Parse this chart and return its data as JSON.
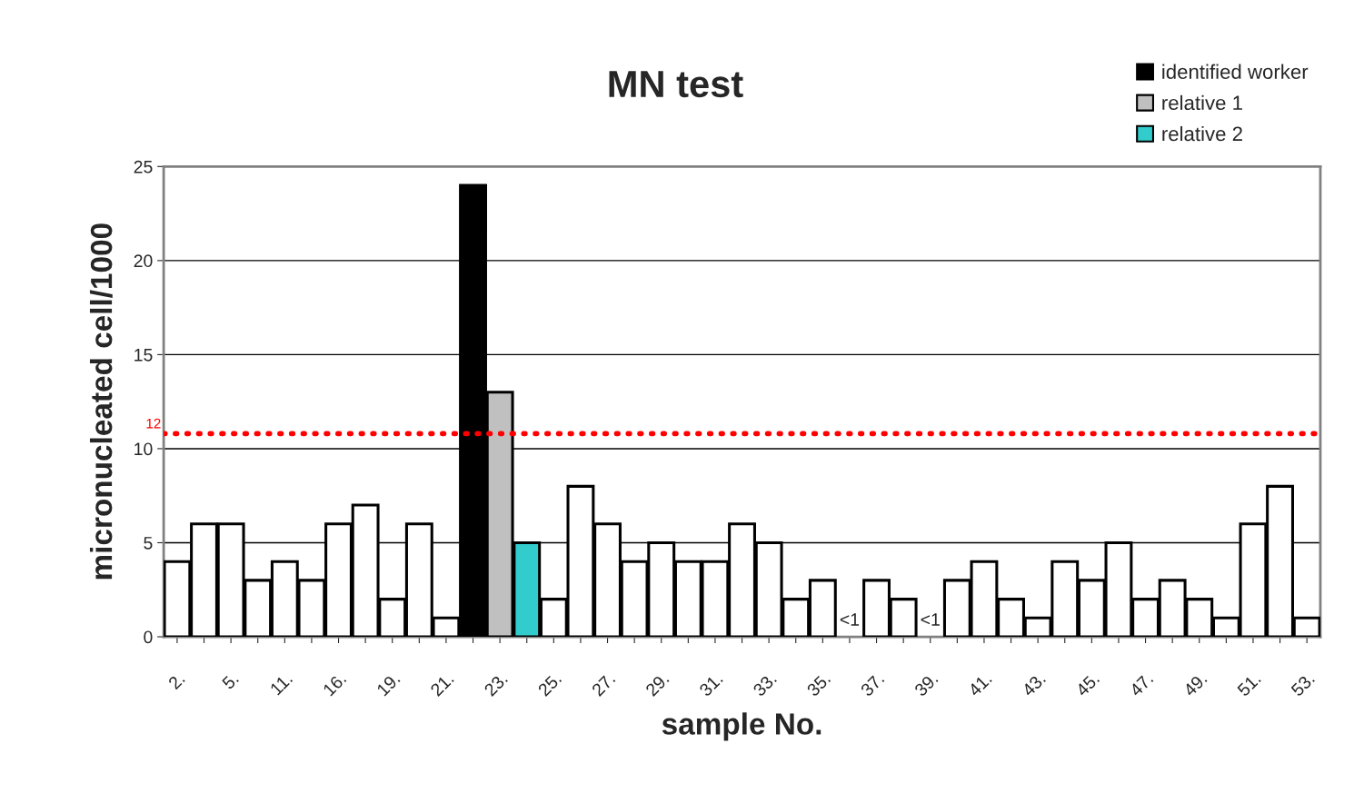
{
  "chart_data": {
    "type": "bar",
    "title": "MN test",
    "xlabel": "sample No.",
    "ylabel": "micronucleated cell/1000",
    "categories": [
      "2.",
      null,
      "5.",
      null,
      "11.",
      null,
      "16.",
      null,
      "19.",
      null,
      "21.",
      null,
      "23.",
      null,
      "25.",
      null,
      "27.",
      null,
      "29.",
      null,
      "31.",
      null,
      "33.",
      null,
      "35.",
      null,
      "37.",
      null,
      "39.",
      null,
      "41.",
      null,
      "43.",
      null,
      "45.",
      null,
      "47.",
      null,
      "49.",
      null,
      "51.",
      null,
      "53."
    ],
    "series": [
      {
        "color": "#ffffff",
        "values": [
          4,
          6,
          6,
          3,
          4,
          3,
          6,
          7,
          2,
          6,
          1,
          null,
          null,
          null,
          2,
          8,
          6,
          4,
          5,
          4,
          4,
          6,
          5,
          2,
          3,
          null,
          3,
          2,
          null,
          3,
          4,
          2,
          1,
          4,
          3,
          5,
          2,
          3,
          2,
          1,
          6,
          8,
          1
        ],
        "value_labels": [
          null,
          null,
          null,
          null,
          null,
          null,
          null,
          null,
          null,
          null,
          null,
          null,
          null,
          null,
          null,
          null,
          null,
          null,
          null,
          null,
          null,
          null,
          null,
          null,
          null,
          "<1",
          null,
          null,
          "<1",
          null,
          null,
          null,
          null,
          null,
          null,
          null,
          null,
          null,
          null,
          null,
          null,
          null,
          null
        ]
      },
      {
        "name": "identified worker",
        "color": "#000000",
        "values": [
          null,
          null,
          null,
          null,
          null,
          null,
          null,
          null,
          null,
          null,
          null,
          24,
          null,
          null,
          null,
          null,
          null,
          null,
          null,
          null,
          null,
          null,
          null,
          null,
          null,
          null,
          null,
          null,
          null,
          null,
          null,
          null,
          null,
          null,
          null,
          null,
          null,
          null,
          null,
          null,
          null,
          null,
          null
        ]
      },
      {
        "name": "relative 1",
        "color": "#c0c0c0",
        "values": [
          null,
          null,
          null,
          null,
          null,
          null,
          null,
          null,
          null,
          null,
          null,
          null,
          13,
          null,
          null,
          null,
          null,
          null,
          null,
          null,
          null,
          null,
          null,
          null,
          null,
          null,
          null,
          null,
          null,
          null,
          null,
          null,
          null,
          null,
          null,
          null,
          null,
          null,
          null,
          null,
          null,
          null,
          null
        ]
      },
      {
        "name": "relative 2",
        "color": "#33cccc",
        "values": [
          null,
          null,
          null,
          null,
          null,
          null,
          null,
          null,
          null,
          null,
          null,
          null,
          null,
          5,
          null,
          null,
          null,
          null,
          null,
          null,
          null,
          null,
          null,
          null,
          null,
          null,
          null,
          null,
          null,
          null,
          null,
          null,
          null,
          null,
          null,
          null,
          null,
          null,
          null,
          null,
          null,
          null,
          null
        ]
      }
    ],
    "ylim": [
      0,
      25
    ],
    "yticks": [
      0,
      5,
      10,
      15,
      20,
      25
    ],
    "ref_lines": [
      {
        "axis": "y",
        "value": 10.8,
        "color": "#ff0000",
        "line_style": "dotted"
      }
    ],
    "annotations": [
      "12"
    ],
    "grid": "y",
    "legend": "top right"
  }
}
